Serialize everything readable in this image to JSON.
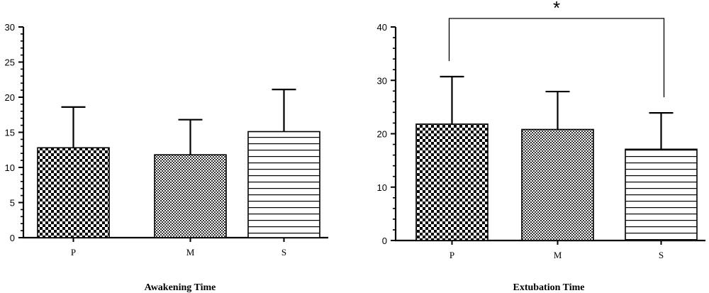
{
  "chart_data": [
    {
      "type": "bar",
      "title": "Awakening Time",
      "categories": [
        "P",
        "M",
        "S"
      ],
      "values": [
        12.8,
        11.8,
        15.1
      ],
      "errors": [
        5.8,
        5.0,
        6.0
      ],
      "patterns": [
        "checker-coarse",
        "checker-fine",
        "hlines"
      ],
      "ylim": [
        0,
        30
      ],
      "yticks": [
        "0",
        "5",
        "10",
        "15",
        "20",
        "25",
        "30"
      ],
      "grid": false,
      "legend": "none"
    },
    {
      "type": "bar",
      "title": "Extubation Time",
      "categories": [
        "P",
        "M",
        "S"
      ],
      "values": [
        21.8,
        20.8,
        17.1
      ],
      "errors": [
        8.9,
        7.1,
        6.8
      ],
      "patterns": [
        "checker-coarse",
        "checker-fine",
        "hlines"
      ],
      "ylim": [
        0,
        40
      ],
      "yticks": [
        "0",
        "10",
        "20",
        "30",
        "40"
      ],
      "grid": false,
      "legend": "none",
      "significance": {
        "from": "P",
        "to": "S",
        "label": "*"
      }
    }
  ]
}
